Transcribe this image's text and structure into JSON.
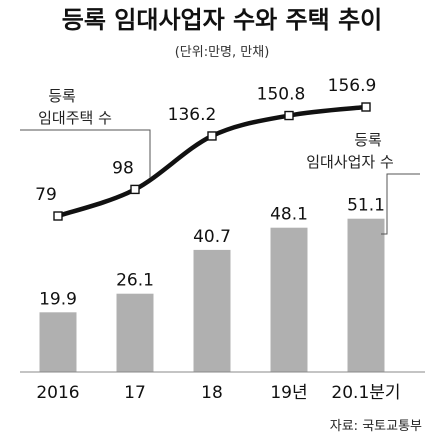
{
  "chart_data": {
    "type": "bar+line",
    "title": "등록 임대사업자 수와 주택 추이",
    "subtitle": "(단위:만명, 만채)",
    "categories": [
      "2016",
      "17",
      "18",
      "19년",
      "20.1분기"
    ],
    "series": [
      {
        "name": "등록 임대주택 수",
        "type": "line",
        "values": [
          79,
          98,
          136.2,
          150.8,
          156.9
        ],
        "value_labels": [
          "79",
          "98",
          "136.2",
          "150.8",
          "156.9"
        ],
        "color": "#111111"
      },
      {
        "name": "등록 임대사업자 수",
        "type": "bar",
        "values": [
          19.9,
          26.1,
          40.7,
          48.1,
          51.1
        ],
        "value_labels": [
          "19.9",
          "26.1",
          "40.7",
          "48.1",
          "51.1"
        ],
        "color": "#b0b0b0"
      }
    ],
    "line_legend_lines": [
      "등록",
      "임대주택 수"
    ],
    "bar_legend_lines": [
      "등록",
      "임대사업자 수"
    ],
    "source": "자료: 국토교통부",
    "grid": false
  }
}
